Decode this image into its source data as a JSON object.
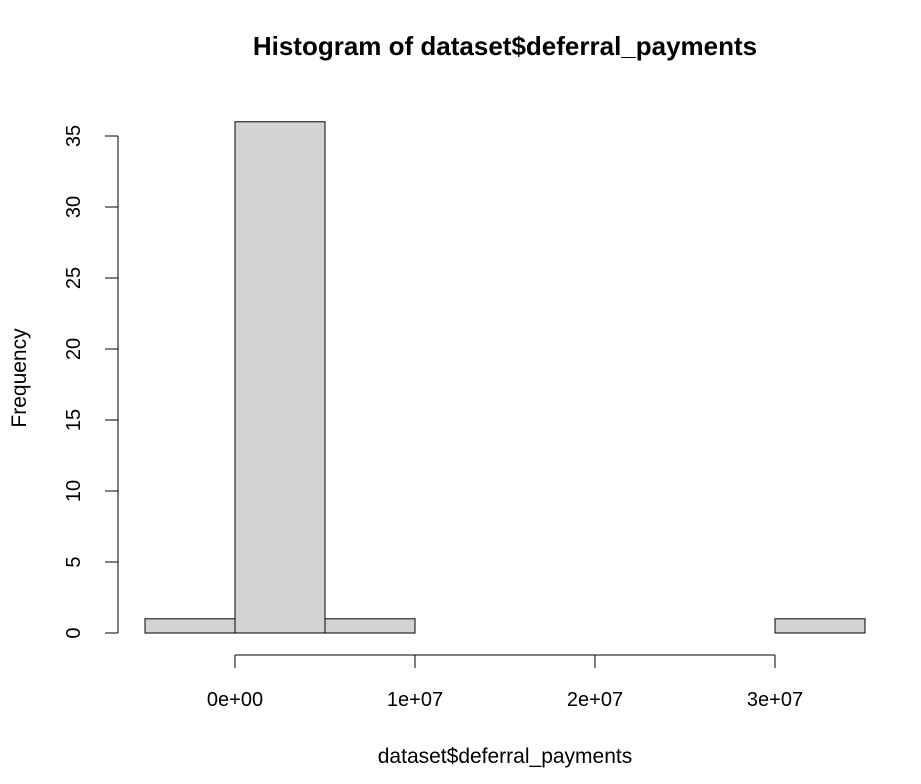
{
  "chart_data": {
    "type": "bar",
    "title": "Histogram of dataset$deferral_payments",
    "xlabel": "dataset$deferral_payments",
    "ylabel": "Frequency",
    "bins": [
      {
        "start": -5000000,
        "end": 0,
        "count": 1
      },
      {
        "start": 0,
        "end": 5000000,
        "count": 36
      },
      {
        "start": 5000000,
        "end": 10000000,
        "count": 1
      },
      {
        "start": 10000000,
        "end": 15000000,
        "count": 0
      },
      {
        "start": 15000000,
        "end": 20000000,
        "count": 0
      },
      {
        "start": 20000000,
        "end": 25000000,
        "count": 0
      },
      {
        "start": 25000000,
        "end": 30000000,
        "count": 0
      },
      {
        "start": 30000000,
        "end": 35000000,
        "count": 1
      }
    ],
    "xlim": [
      -5000000,
      35000000
    ],
    "ylim": [
      0,
      36
    ],
    "x_ticks": [
      {
        "value": 0,
        "label": "0e+00"
      },
      {
        "value": 10000000,
        "label": "1e+07"
      },
      {
        "value": 20000000,
        "label": "2e+07"
      },
      {
        "value": 30000000,
        "label": "3e+07"
      }
    ],
    "y_ticks": [
      {
        "value": 0,
        "label": "0"
      },
      {
        "value": 5,
        "label": "5"
      },
      {
        "value": 10,
        "label": "10"
      },
      {
        "value": 15,
        "label": "15"
      },
      {
        "value": 20,
        "label": "20"
      },
      {
        "value": 25,
        "label": "25"
      },
      {
        "value": 30,
        "label": "30"
      },
      {
        "value": 35,
        "label": "35"
      }
    ],
    "grid": false,
    "bar_color": "#d3d3d3"
  }
}
